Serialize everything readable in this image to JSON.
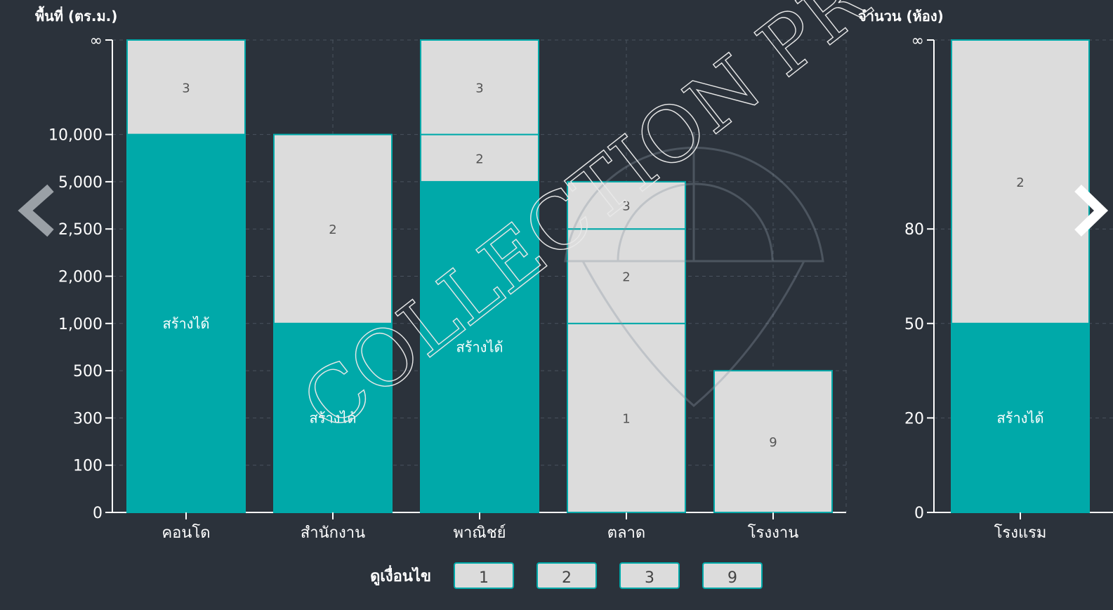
{
  "charts": [
    {
      "type": "bar",
      "y_title": "พื้นที่ (ตร.ม.)",
      "yticks": [
        0,
        100,
        300,
        500,
        {
          "value": 1000,
          "label": "1,000"
        },
        {
          "value": 2000,
          "label": "2,000"
        },
        {
          "value": 2500,
          "label": "2,500"
        },
        {
          "value": 5000,
          "label": "5,000"
        },
        {
          "value": 10000,
          "label": "10,000"
        },
        "∞"
      ],
      "bars": [
        {
          "category": "คอนโด",
          "segments": [
            {
              "label": "สร้างได้",
              "to": 10000,
              "color": "#00a9a9"
            },
            {
              "label": "3",
              "to": "∞",
              "color": "#dcdcdc"
            }
          ]
        },
        {
          "category": "สำนักงาน",
          "segments": [
            {
              "label": "สร้างได้",
              "to": 1000,
              "color": "#00a9a9"
            },
            {
              "label": "2",
              "to": 10000,
              "color": "#dcdcdc"
            }
          ]
        },
        {
          "category": "พาณิชย์",
          "segments": [
            {
              "label": "สร้างได้",
              "to": 5000,
              "color": "#00a9a9"
            },
            {
              "label": "2",
              "to": 10000,
              "color": "#dcdcdc"
            },
            {
              "label": "3",
              "to": "∞",
              "color": "#dcdcdc"
            }
          ]
        },
        {
          "category": "ตลาด",
          "segments": [
            {
              "label": "1",
              "to": 1000,
              "color": "#dcdcdc"
            },
            {
              "label": "2",
              "to": 2500,
              "color": "#dcdcdc"
            },
            {
              "label": "3",
              "to": 5000,
              "color": "#dcdcdc"
            }
          ]
        },
        {
          "category": "โรงงาน",
          "segments": [
            {
              "label": "9",
              "to": 500,
              "color": "#dcdcdc"
            }
          ]
        }
      ]
    },
    {
      "type": "bar",
      "y_title": "จำนวน (ห้อง)",
      "yticks": [
        0,
        20,
        50,
        80,
        "∞"
      ],
      "bars": [
        {
          "category": "โรงแรม",
          "segments": [
            {
              "label": "สร้างได้",
              "to": 50,
              "color": "#00a9a9"
            },
            {
              "label": "2",
              "to": "∞",
              "color": "#dcdcdc"
            }
          ]
        }
      ]
    }
  ],
  "conditions": {
    "label": "ดูเงื่อนไข",
    "buttons": [
      "1",
      "2",
      "3",
      "9"
    ]
  },
  "watermark": "COLLECTION PROPE"
}
